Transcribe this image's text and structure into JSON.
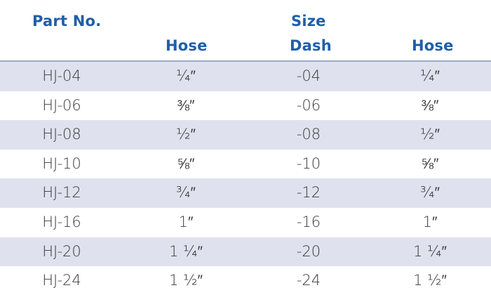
{
  "header": {
    "part_no": "Part No.",
    "size": "Size",
    "hose": "Hose",
    "dash": "Dash",
    "hose_2": "Hose"
  },
  "rows": [
    {
      "part": "HJ-04",
      "hose": "¼″",
      "dash": "-04",
      "hose_2": "¼″"
    },
    {
      "part": "HJ-06",
      "hose": "⅜″",
      "dash": "-06",
      "hose_2": "⅜″"
    },
    {
      "part": "HJ-08",
      "hose": "½″",
      "dash": "-08",
      "hose_2": "½″"
    },
    {
      "part": "HJ-10",
      "hose": "⅝″",
      "dash": "-10",
      "hose_2": "⅝″"
    },
    {
      "part": "HJ-12",
      "hose": "¾″",
      "dash": "-12",
      "hose_2": "¾″"
    },
    {
      "part": "HJ-16",
      "hose": "1″",
      "dash": "-16",
      "hose_2": "1″"
    },
    {
      "part": "HJ-20",
      "hose": "1 ¼″",
      "dash": "-20",
      "hose_2": "1 ¼″"
    },
    {
      "part": "HJ-24",
      "hose": "1 ½″",
      "dash": "-24",
      "hose_2": "1 ½″"
    }
  ],
  "colors": {
    "header_text": "#1f5fa8",
    "row_shade": "#dfe2ee",
    "rule": "#9ea9c7",
    "body_text": "#3a3a3a"
  }
}
